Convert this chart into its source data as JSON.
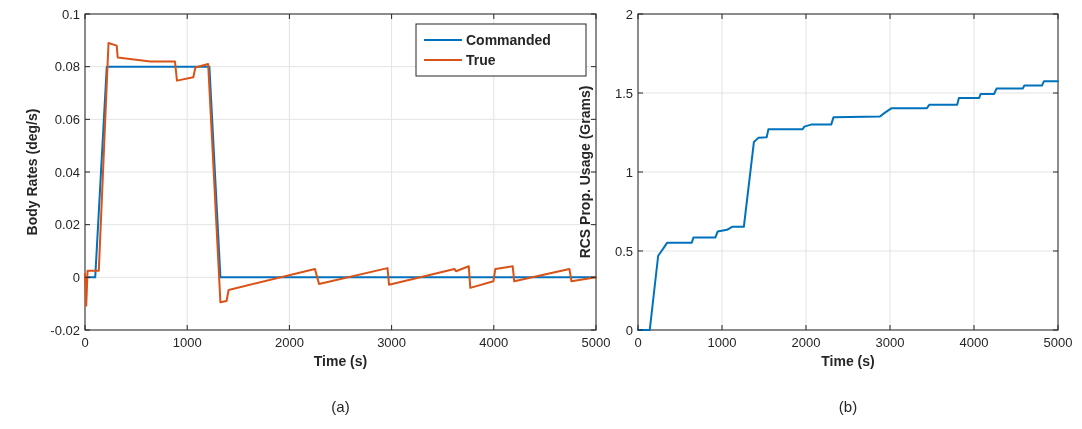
{
  "chart_data": [
    {
      "type": "line",
      "xlabel": "Time (s)",
      "ylabel": "Body Rates (deg/s)",
      "annotations": [
        "(a)"
      ],
      "xlim": [
        0,
        5000
      ],
      "ylim": [
        -0.02,
        0.1
      ],
      "xticks": [
        0,
        1000,
        2000,
        3000,
        4000,
        5000
      ],
      "yticks": [
        -0.02,
        0,
        0.02,
        0.04,
        0.06,
        0.08,
        0.1
      ],
      "grid": true,
      "legend": "top right",
      "line_style": "solid",
      "marker": "none",
      "series": [
        {
          "name": "Commanded",
          "color": "#0072bd",
          "x": [
            0,
            100,
            213,
            1217,
            1325,
            5000
          ],
          "values": [
            0,
            0,
            0.08,
            0.08,
            0,
            0
          ]
        },
        {
          "name": "True",
          "color": "#d95319",
          "x": [
            0,
            12,
            25,
            135,
            230,
            310,
            320,
            640,
            880,
            900,
            1060,
            1080,
            1205,
            1325,
            1385,
            1405,
            2250,
            2290,
            2960,
            2975,
            3615,
            3630,
            3755,
            3770,
            3996,
            4015,
            4185,
            4200,
            4740,
            4760,
            5000
          ],
          "values": [
            0.0013,
            -0.0108,
            0.0025,
            0.0025,
            0.089,
            0.088,
            0.0835,
            0.082,
            0.082,
            0.0747,
            0.076,
            0.0797,
            0.081,
            -0.0095,
            -0.009,
            -0.0048,
            0.0032,
            -0.0025,
            0.0035,
            -0.0028,
            0.0032,
            0.0023,
            0.0042,
            -0.004,
            -0.0015,
            0.0032,
            0.0042,
            -0.0015,
            0.0032,
            -0.0015,
            0
          ]
        }
      ]
    },
    {
      "type": "line",
      "xlabel": "Time (s)",
      "ylabel": "RCS Prop. Usage (Grams)",
      "annotations": [
        "(b)"
      ],
      "xlim": [
        0,
        5000
      ],
      "ylim": [
        0,
        2
      ],
      "xticks": [
        0,
        1000,
        2000,
        3000,
        4000,
        5000
      ],
      "yticks": [
        0,
        0.5,
        1,
        1.5,
        2
      ],
      "grid": true,
      "line_style": "solid",
      "marker": "none",
      "series": [
        {
          "color": "#0072bd",
          "x": [
            0,
            140,
            240,
            280,
            300,
            348,
            640,
            660,
            920,
            948,
            1060,
            1120,
            1260,
            1380,
            1432,
            1532,
            1552,
            1960,
            1980,
            2060,
            2300,
            2328,
            2880,
            2940,
            3020,
            3440,
            3468,
            3800,
            3820,
            4060,
            4080,
            4240,
            4268,
            4580,
            4600,
            4808,
            4832,
            5000
          ],
          "values": [
            0,
            0,
            0.47,
            0.5,
            0.515,
            0.553,
            0.553,
            0.585,
            0.585,
            0.623,
            0.634,
            0.653,
            0.653,
            1.19,
            1.216,
            1.22,
            1.27,
            1.27,
            1.287,
            1.3,
            1.3,
            1.347,
            1.351,
            1.376,
            1.404,
            1.404,
            1.426,
            1.426,
            1.468,
            1.468,
            1.494,
            1.494,
            1.528,
            1.528,
            1.547,
            1.547,
            1.574,
            1.574
          ]
        }
      ]
    }
  ]
}
